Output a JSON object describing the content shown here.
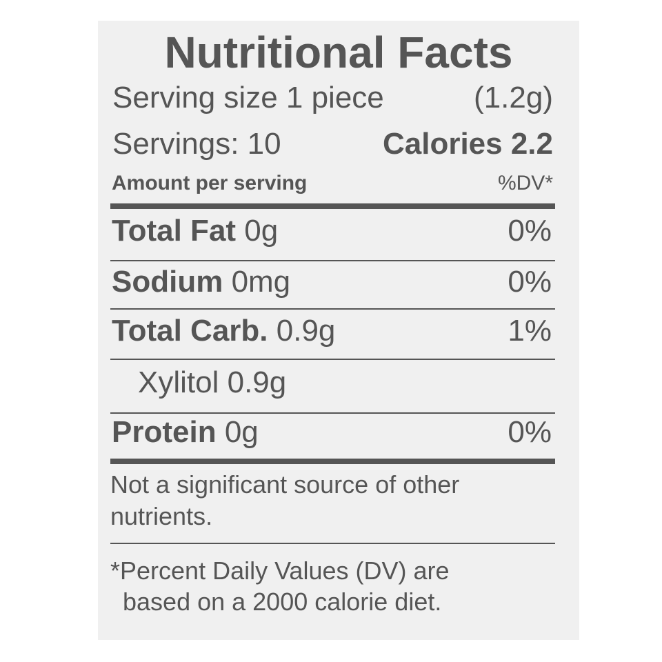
{
  "label": {
    "title": "Nutritional Facts",
    "serving_size_label": "Serving size 1 piece",
    "serving_size_weight": "(1.2g)",
    "servings": "Servings: 10",
    "calories": "Calories 2.2",
    "amount_per_serving": "Amount per serving",
    "dv_header": "%DV*",
    "nutrients": [
      {
        "name": "Total Fat",
        "amount": "0g",
        "dv": "0%"
      },
      {
        "name": "Sodium",
        "amount": "0mg",
        "dv": "0%"
      },
      {
        "name": "Total Carb.",
        "amount": "0.9g",
        "dv": "1%"
      },
      {
        "name": "Xylitol",
        "amount": "0.9g",
        "dv": ""
      },
      {
        "name": "Protein",
        "amount": "0g",
        "dv": "0%"
      }
    ],
    "note_line1": "Not a significant source of other",
    "note_line2": "nutrients.",
    "footnote_line1": "*Percent Daily Values (DV) are",
    "footnote_line2": "based on a 2000 calorie diet."
  },
  "colors": {
    "text": "#555555",
    "panel": "#f0f0f0",
    "background": "#ffffff"
  }
}
